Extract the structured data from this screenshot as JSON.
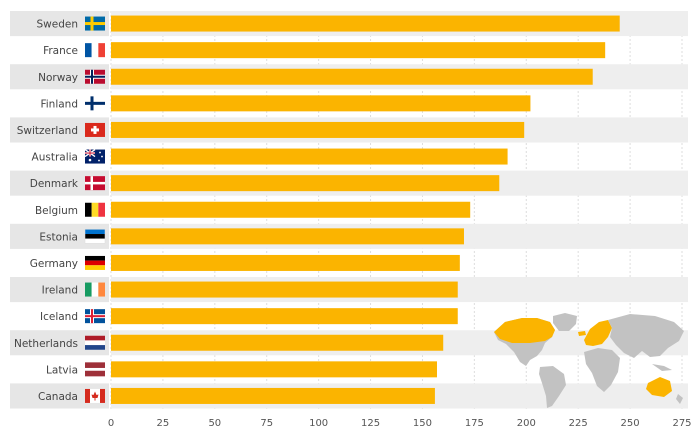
{
  "chart_data": {
    "type": "bar",
    "orientation": "horizontal",
    "categories": [
      "Sweden",
      "France",
      "Norway",
      "Finland",
      "Switzerland",
      "Australia",
      "Denmark",
      "Belgium",
      "Estonia",
      "Germany",
      "Ireland",
      "Iceland",
      "Netherlands",
      "Latvia",
      "Canada"
    ],
    "values": [
      245,
      238,
      232,
      202,
      199,
      191,
      187,
      173,
      170,
      168,
      167,
      167,
      160,
      157,
      156
    ],
    "flags": [
      "flag-sweden",
      "flag-france",
      "flag-norway",
      "flag-finland",
      "flag-switzerland",
      "flag-australia",
      "flag-denmark",
      "flag-belgium",
      "flag-estonia",
      "flag-germany",
      "flag-ireland",
      "flag-iceland",
      "flag-netherlands",
      "flag-latvia",
      "flag-canada"
    ],
    "xlim": [
      0,
      275
    ],
    "xticks": [
      "0",
      "25",
      "50",
      "75",
      "100",
      "125",
      "150",
      "175",
      "200",
      "225",
      "250",
      "275"
    ],
    "grid": true,
    "title": "",
    "xlabel": "",
    "ylabel": "",
    "inset": "world-map-icon",
    "colors": {
      "bar": "#FBB400",
      "row_band": "#EEEEEE",
      "label_band": "#E6E6E6",
      "grid": "#DDDDDD",
      "map_land": "#C2C2C2",
      "map_highlight": "#FBB400"
    }
  }
}
